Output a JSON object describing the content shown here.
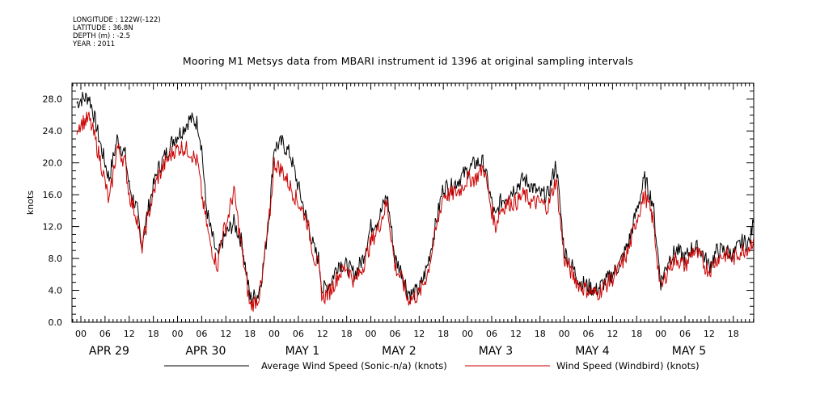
{
  "header": {
    "longitude": "LONGITUDE : 122W(-122)",
    "latitude": "LATITUDE : 36.8N",
    "depth": "DEPTH (m) : -2.5",
    "year": "YEAR : 2011"
  },
  "chart_data": {
    "type": "line",
    "title": "Mooring M1 Metsys data from MBARI instrument id 1396 at original sampling intervals",
    "ylabel": "knots",
    "ylim": [
      0,
      30
    ],
    "yticks": [
      "0.0",
      "4.0",
      "8.0",
      "12.0",
      "16.0",
      "20.0",
      "24.0",
      "28.0"
    ],
    "hour_ticks": [
      "00",
      "06",
      "12",
      "18",
      "00",
      "06",
      "12",
      "18",
      "00",
      "06",
      "12",
      "18",
      "00",
      "06",
      "12",
      "18",
      "00",
      "06",
      "12",
      "18",
      "00",
      "06",
      "12",
      "18",
      "00",
      "06",
      "12",
      "18"
    ],
    "day_labels": [
      "APR 29",
      "APR 30",
      "MAY  1",
      "MAY  2",
      "MAY  3",
      "MAY  4",
      "MAY  5"
    ],
    "x_unit": "hours since APR 29 00:00",
    "series": [
      {
        "name": "Average Wind Speed (Sonic-n/a) (knots)",
        "color": "#000000",
        "x": [
          -1,
          0,
          2,
          3,
          5,
          7,
          9,
          11,
          12,
          14,
          15,
          17,
          19,
          21,
          23,
          25,
          27,
          29,
          30,
          31,
          32,
          34,
          35,
          36,
          38,
          40,
          42,
          44,
          45,
          46,
          47,
          48,
          50,
          52,
          54,
          56,
          58,
          59,
          60,
          62,
          64,
          66,
          68,
          70,
          72,
          74,
          76,
          78,
          80,
          81,
          82,
          84,
          86,
          88,
          90,
          92,
          94,
          96,
          98,
          100,
          102,
          103,
          104,
          106,
          108,
          110,
          112,
          114,
          116,
          118,
          120,
          122,
          124,
          126,
          128,
          130,
          132,
          134,
          136,
          138,
          140,
          142,
          144,
          146,
          148,
          150,
          152,
          154,
          155,
          156,
          158,
          160,
          162,
          164,
          166,
          167
        ],
        "y": [
          27.5,
          28,
          28.3,
          26.5,
          22,
          18,
          23,
          21,
          17,
          14,
          9.5,
          15,
          19,
          21,
          23,
          24,
          25.5,
          25,
          22,
          15,
          12,
          8,
          10,
          11,
          12.5,
          10,
          3,
          3.5,
          6,
          10,
          15,
          22,
          22.5,
          21,
          17,
          13,
          9,
          8,
          4,
          5,
          7.5,
          7,
          6,
          8,
          12,
          13,
          16,
          8,
          6,
          4,
          3.5,
          4,
          7,
          12,
          17,
          17,
          18,
          19,
          20,
          20,
          15,
          13,
          15,
          16,
          17,
          18,
          17,
          16,
          16,
          20,
          9,
          7,
          5,
          4.5,
          4,
          5,
          6,
          7.5,
          10,
          14,
          18,
          15,
          5,
          8,
          9,
          8,
          9.5,
          9,
          8,
          7,
          9,
          9,
          8.5,
          10,
          10,
          12.5
        ]
      },
      {
        "name": "Wind Speed (Windbird) (knots)",
        "color": "#cc0000",
        "x": [
          -1,
          0,
          2,
          3,
          5,
          7,
          9,
          11,
          12,
          14,
          15,
          17,
          19,
          21,
          23,
          25,
          27,
          29,
          30,
          31,
          32,
          34,
          35,
          36,
          38,
          40,
          42,
          44,
          45,
          46,
          47,
          48,
          50,
          52,
          54,
          56,
          58,
          59,
          60,
          62,
          64,
          66,
          68,
          70,
          72,
          74,
          76,
          78,
          80,
          81,
          82,
          84,
          86,
          88,
          90,
          92,
          94,
          96,
          98,
          100,
          102,
          103,
          104,
          106,
          108,
          110,
          112,
          114,
          116,
          118,
          120,
          122,
          124,
          126,
          128,
          130,
          132,
          134,
          136,
          138,
          140,
          142,
          144,
          146,
          148,
          150,
          152,
          154,
          155,
          156,
          158,
          160,
          162,
          164,
          166,
          167
        ],
        "y": [
          24.5,
          25,
          25.5,
          24,
          20,
          15,
          22,
          20,
          16,
          13,
          9,
          14,
          18,
          20,
          21.5,
          22,
          21.5,
          20,
          16,
          13,
          10,
          7,
          11,
          12,
          16.5,
          9,
          2,
          3,
          5,
          10,
          14,
          20,
          19,
          17,
          15,
          13,
          8,
          7,
          3,
          4,
          6,
          7,
          5,
          7,
          10,
          12,
          15,
          7,
          5,
          3,
          3,
          3.5,
          6,
          11,
          16,
          16,
          16.5,
          18,
          18,
          19.5,
          14,
          12,
          14,
          15,
          15,
          16,
          15,
          15,
          14.5,
          18,
          8,
          6,
          4.5,
          4,
          3.5,
          4.5,
          5.5,
          7,
          9,
          13,
          16,
          13,
          4,
          7,
          8,
          7,
          9,
          8,
          7,
          6.5,
          8,
          8.5,
          8,
          9,
          9.5,
          10.5
        ]
      }
    ],
    "legend": "bottom"
  }
}
